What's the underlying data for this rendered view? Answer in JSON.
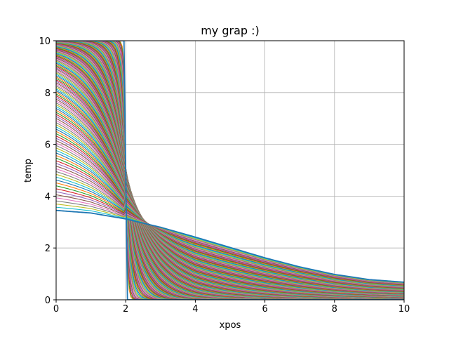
{
  "chart_data": {
    "type": "line",
    "title": "my grap :)",
    "xlabel": "xpos",
    "ylabel": "temp",
    "xlim": [
      0,
      10
    ],
    "ylim": [
      0,
      10
    ],
    "xticks": [
      "0",
      "2",
      "4",
      "6",
      "8",
      "10"
    ],
    "yticks": [
      "0",
      "2",
      "4",
      "6",
      "8",
      "10"
    ],
    "grid": true,
    "legend": "none",
    "description_of_series": "",
    "initial_condition": {
      "x": [
        0,
        1.5,
        1.95,
        2.0,
        2.05,
        2.5,
        10
      ],
      "y": [
        10,
        10,
        10,
        5,
        0,
        0,
        0
      ]
    },
    "steady_state_curve": {
      "x": [
        0,
        1,
        2,
        3,
        4,
        5,
        6,
        7,
        8,
        9,
        10
      ],
      "y": [
        3.45,
        3.35,
        3.12,
        2.8,
        2.42,
        2.02,
        1.62,
        1.27,
        0.98,
        0.78,
        0.68
      ]
    },
    "junction_decay": {
      "x": [
        2.0,
        2.5,
        3.0,
        3.5,
        4.0
      ],
      "y": [
        5.1,
        4.0,
        3.25,
        2.75,
        2.42
      ]
    },
    "num_curves": 140
  },
  "colors": {
    "palette": [
      "#1f77b4",
      "#ff7f0e",
      "#2ca02c",
      "#d62728",
      "#9467bd",
      "#8c564b",
      "#e377c2",
      "#7f7f7f",
      "#bcbd22",
      "#17becf"
    ],
    "grid": "#b0b0b0",
    "axis": "#000000"
  }
}
